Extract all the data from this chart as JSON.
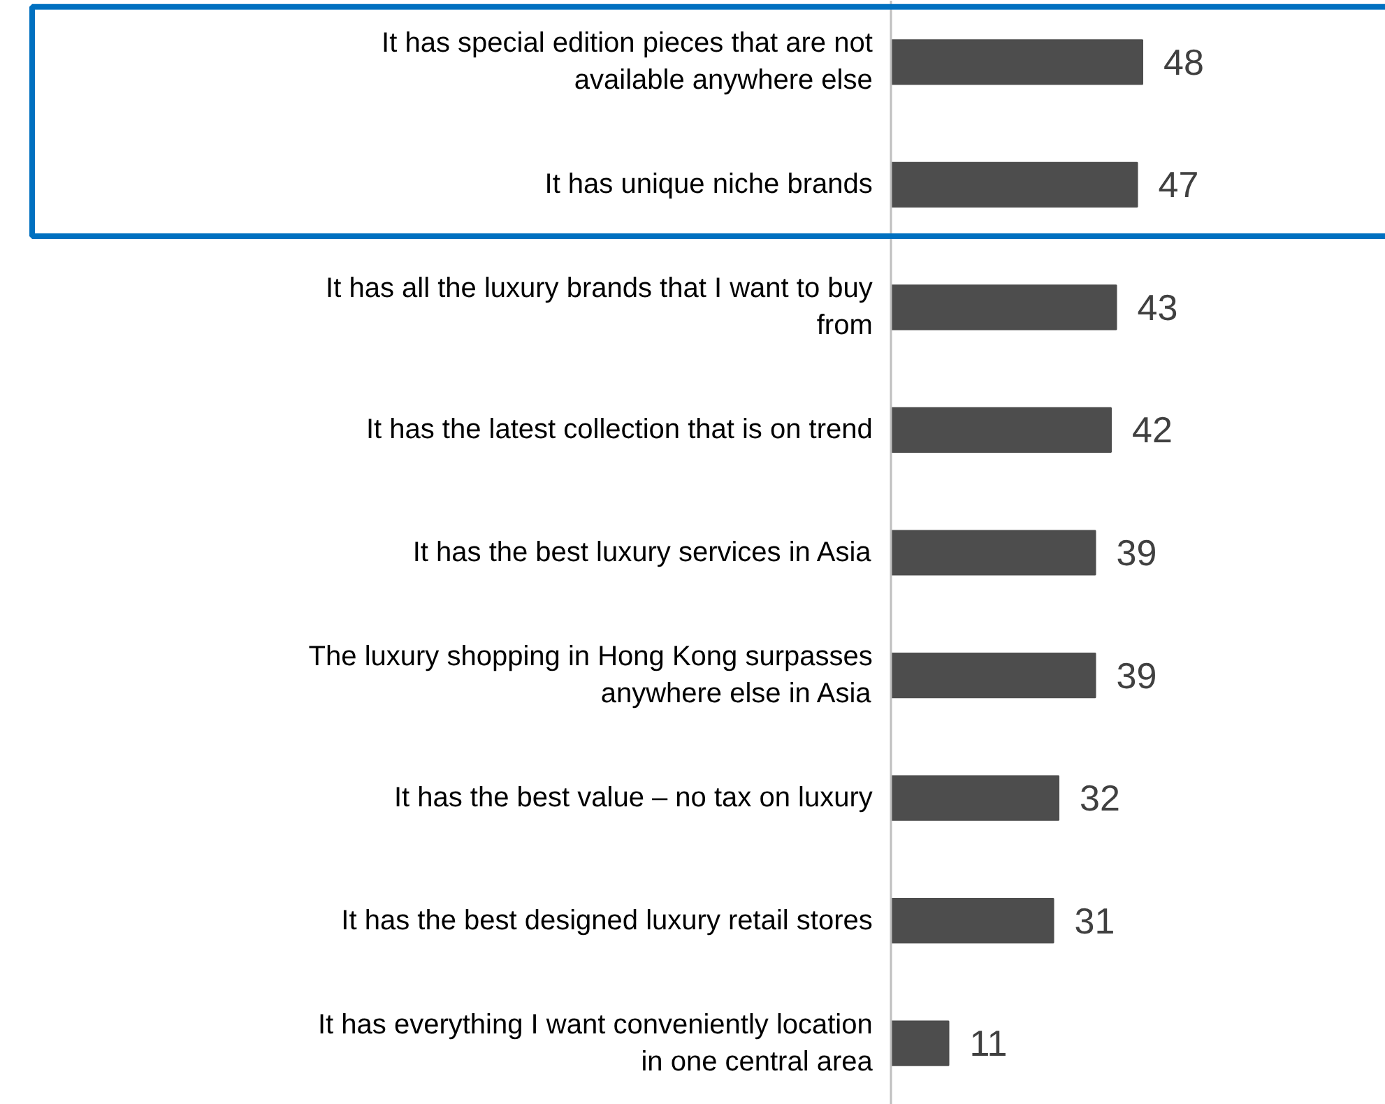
{
  "chart_data": {
    "type": "bar",
    "orientation": "horizontal",
    "data_labels": true,
    "categories": [
      "It has special edition pieces that are not available anywhere else",
      "It has unique niche brands",
      "It has all the luxury brands that I want to buy from",
      "It has the latest collection that is on trend",
      "It has the best luxury services in Asia",
      "The luxury shopping in Hong Kong surpasses anywhere else in Asia",
      "It has the best value – no tax on luxury",
      "It has the best designed luxury retail stores",
      "It has everything I want conveniently location in one central area"
    ],
    "values": [
      48,
      47,
      43,
      42,
      39,
      39,
      32,
      31,
      11
    ],
    "color": "#4d4d4d"
  }
}
